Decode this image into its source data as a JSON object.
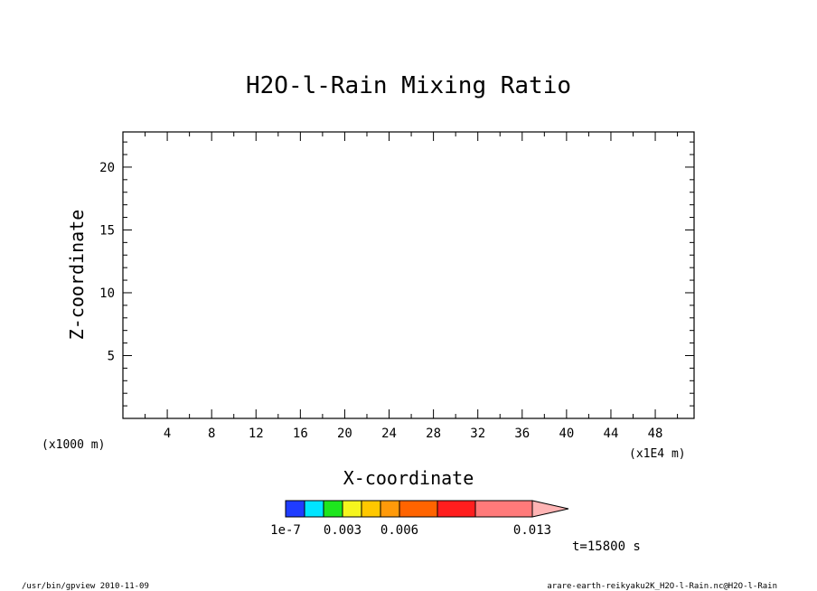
{
  "chart_data": {
    "type": "heatmap",
    "title": "H2O-l-Rain Mixing Ratio",
    "xlabel": "X-coordinate",
    "ylabel": "Z-coordinate",
    "x_unit": "(x1000 m)",
    "x_unit_right": "(x1E4 m)",
    "x_ticks": [
      4,
      8,
      12,
      16,
      20,
      24,
      28,
      32,
      36,
      40,
      44,
      48
    ],
    "y_ticks": [
      5,
      10,
      15,
      20
    ],
    "xlim": [
      0,
      51.5
    ],
    "ylim": [
      0,
      22.8
    ],
    "values": [],
    "colorbar": {
      "colors": [
        "#1f3cff",
        "#00e5ff",
        "#1ee61e",
        "#f5f51e",
        "#ffc800",
        "#ff9a0a",
        "#ff6400",
        "#ff1e1e",
        "#ff7a7a",
        "#ffb4b4"
      ],
      "labels": [
        "1e-7",
        "0.003",
        "0.006",
        "0.013"
      ]
    },
    "time_label": "t=15800 s"
  },
  "footer": {
    "left": "/usr/bin/gpview   2010-11-09",
    "right": "arare-earth-reikyaku2K_H2O-l-Rain.nc@H2O-l-Rain"
  }
}
